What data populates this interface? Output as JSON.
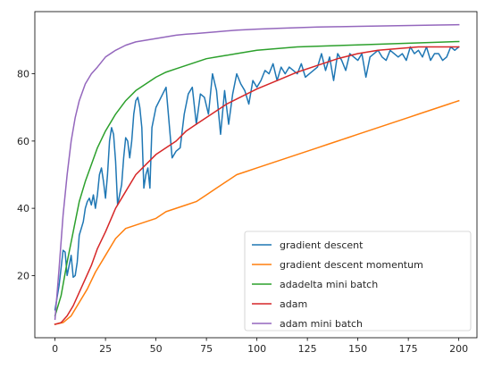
{
  "chart_data": {
    "type": "line",
    "title": "",
    "xlabel": "",
    "ylabel": "",
    "xlim": [
      -10,
      209
    ],
    "ylim": [
      1.5,
      98.5
    ],
    "xticks": [
      0,
      25,
      50,
      75,
      100,
      125,
      150,
      175,
      200
    ],
    "yticks": [
      20,
      40,
      60,
      80
    ],
    "grid": false,
    "legend_position": "lower-right",
    "series": [
      {
        "name": "gradient descent",
        "color": "#1f77b4",
        "x": [
          0,
          2,
          4,
          5,
          6,
          8,
          9,
          10,
          11,
          12,
          14,
          15,
          16,
          17,
          18,
          19,
          20,
          21,
          22,
          23,
          24,
          25,
          26,
          27,
          28,
          29,
          30,
          31,
          32,
          33,
          34,
          35,
          36,
          37,
          38,
          39,
          40,
          41,
          42,
          43,
          44,
          45,
          46,
          47,
          48,
          49,
          50,
          55,
          58,
          60,
          62,
          64,
          66,
          68,
          70,
          72,
          74,
          76,
          78,
          80,
          82,
          84,
          86,
          88,
          90,
          92,
          94,
          96,
          98,
          100,
          102,
          104,
          106,
          108,
          110,
          112,
          114,
          116,
          118,
          120,
          122,
          124,
          126,
          128,
          130,
          132,
          134,
          136,
          138,
          140,
          142,
          144,
          146,
          148,
          150,
          152,
          154,
          156,
          158,
          160,
          162,
          164,
          166,
          168,
          170,
          172,
          174,
          176,
          178,
          180,
          182,
          184,
          186,
          188,
          190,
          192,
          194,
          196,
          198,
          200
        ],
        "y": [
          9.8,
          17,
          27.5,
          27,
          20,
          26,
          19.5,
          20,
          24,
          32,
          36,
          40,
          42,
          43,
          41,
          44,
          40,
          44,
          50,
          52,
          48,
          43,
          50,
          60,
          64,
          62,
          54,
          41,
          44,
          47,
          55,
          61,
          60,
          55,
          60,
          68,
          72,
          73,
          70,
          64,
          46,
          50,
          52,
          46,
          64,
          67,
          70,
          76,
          55,
          57,
          58,
          68,
          74,
          76,
          65,
          74,
          73,
          68,
          80,
          75,
          62,
          75,
          65,
          74,
          80,
          77,
          75,
          71,
          78,
          76,
          78,
          81,
          80,
          83,
          78,
          82,
          80,
          82,
          81,
          80,
          83,
          79,
          80,
          81,
          82,
          86,
          81,
          85,
          78,
          86,
          84,
          81,
          86,
          85,
          84,
          86,
          79,
          85,
          86,
          87,
          85,
          84,
          87,
          86,
          85,
          86,
          84,
          88,
          86,
          87,
          85,
          88,
          84,
          86,
          86,
          84,
          85,
          88,
          87,
          88
        ]
      },
      {
        "name": "gradient descent momentum",
        "color": "#ff7f0e",
        "x": [
          0,
          4,
          8,
          12,
          16,
          20,
          25,
          30,
          35,
          40,
          45,
          50,
          55,
          60,
          65,
          70,
          75,
          80,
          85,
          90,
          95,
          100,
          105,
          110,
          115,
          120,
          125,
          130,
          135,
          140,
          145,
          150,
          155,
          160,
          165,
          170,
          175,
          180,
          185,
          190,
          195,
          200
        ],
        "y": [
          5.5,
          6,
          8,
          12,
          16,
          21,
          26,
          31,
          34,
          35,
          36,
          37,
          39,
          40,
          41,
          42,
          44,
          46,
          48,
          50,
          51,
          52,
          53,
          54,
          55,
          56,
          57,
          58,
          59,
          60,
          61,
          62,
          63,
          64,
          65,
          66,
          67,
          68,
          69,
          70,
          71,
          72
        ]
      },
      {
        "name": "adadelta mini batch",
        "color": "#2ca02c",
        "x": [
          0,
          3,
          6,
          9,
          12,
          15,
          18,
          21,
          25,
          30,
          35,
          40,
          45,
          50,
          55,
          60,
          65,
          70,
          75,
          80,
          85,
          90,
          95,
          100,
          110,
          120,
          130,
          140,
          150,
          160,
          170,
          180,
          190,
          200
        ],
        "y": [
          8,
          14,
          24,
          33,
          42,
          48,
          53,
          58,
          63,
          68,
          72,
          75,
          77,
          79,
          80.5,
          81.5,
          82.5,
          83.5,
          84.5,
          85,
          85.5,
          86,
          86.5,
          87,
          87.5,
          88,
          88.2,
          88.4,
          88.6,
          88.8,
          89,
          89.2,
          89.4,
          89.6
        ]
      },
      {
        "name": "adam",
        "color": "#d62728",
        "x": [
          0,
          3,
          6,
          9,
          12,
          15,
          18,
          21,
          25,
          30,
          35,
          40,
          45,
          50,
          55,
          60,
          65,
          70,
          75,
          80,
          85,
          90,
          95,
          100,
          110,
          120,
          130,
          140,
          150,
          160,
          170,
          180,
          190,
          200
        ],
        "y": [
          5.5,
          6,
          8,
          11,
          15,
          19,
          23,
          28,
          33,
          40,
          45,
          50,
          53,
          56,
          58,
          60,
          63,
          65,
          67,
          69,
          71,
          72.5,
          74,
          75.5,
          78,
          80.5,
          82.5,
          84.5,
          86,
          87,
          87.5,
          88,
          88,
          88
        ]
      },
      {
        "name": "adam mini batch",
        "color": "#9467bd",
        "x": [
          0,
          2,
          4,
          6,
          8,
          10,
          12,
          15,
          18,
          21,
          25,
          30,
          35,
          40,
          45,
          50,
          55,
          60,
          65,
          70,
          80,
          90,
          100,
          110,
          120,
          130,
          140,
          150,
          160,
          170,
          180,
          190,
          200
        ],
        "y": [
          7,
          22,
          38,
          50,
          60,
          67,
          72,
          77,
          80,
          82,
          85,
          87,
          88.5,
          89.5,
          90,
          90.5,
          91,
          91.5,
          91.8,
          92,
          92.5,
          93,
          93.3,
          93.5,
          93.7,
          93.9,
          94,
          94.1,
          94.2,
          94.3,
          94.4,
          94.5,
          94.6
        ]
      }
    ]
  }
}
